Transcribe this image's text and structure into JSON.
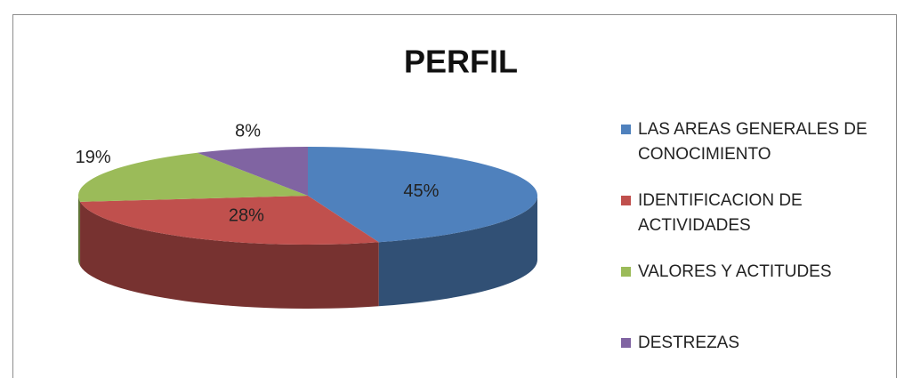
{
  "chart_data": {
    "type": "pie",
    "title": "PERFIL",
    "categories": [
      "LAS AREAS GENERALES DE CONOCIMIENTO",
      "IDENTIFICACION DE ACTIVIDADES",
      "VALORES Y ACTITUDES",
      "DESTREZAS"
    ],
    "values": [
      45,
      28,
      19,
      8
    ],
    "value_labels": [
      "45%",
      "28%",
      "19%",
      "8%"
    ],
    "colors": [
      "#4f81bd",
      "#c0504d",
      "#9bbb59",
      "#8064a2"
    ],
    "legend": "right"
  }
}
